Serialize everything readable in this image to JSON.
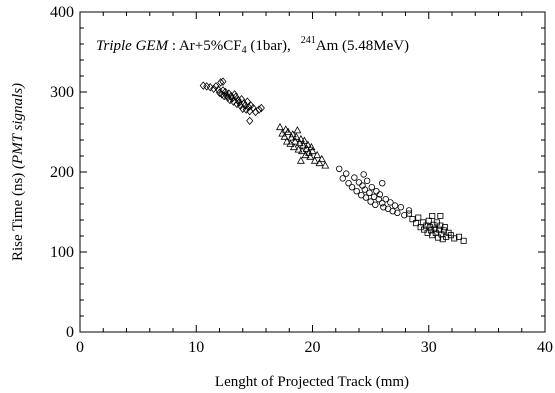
{
  "chart_data": {
    "type": "scatter",
    "title": "",
    "annotation": {
      "detector": "Triple GEM",
      "sep": " : ",
      "gas_pre": "Ar+5%CF",
      "gas_sub": "4",
      "gas_post": " (1bar),",
      "iso_mass": "241",
      "iso_rest": "Am (5.48MeV)"
    },
    "xlabel": "Lenght of Projected Track (mm)",
    "ylabel": {
      "main": "Rise Time (ns) ",
      "italic": "(PMT signals)"
    },
    "xlim": [
      0,
      40
    ],
    "ylim": [
      0,
      400
    ],
    "xticks": [
      "0",
      "10",
      "20",
      "30",
      "40"
    ],
    "yticks": [
      "0",
      "100",
      "200",
      "300",
      "400"
    ],
    "grid": false,
    "legend": "none",
    "series": [
      {
        "marker": "diamond",
        "points": [
          [
            10.6,
            308
          ],
          [
            10.9,
            307
          ],
          [
            11.2,
            306
          ],
          [
            11.5,
            304
          ],
          [
            11.7,
            307
          ],
          [
            11.9,
            303
          ],
          [
            12.0,
            299
          ],
          [
            12.1,
            312
          ],
          [
            12.2,
            297
          ],
          [
            12.3,
            302
          ],
          [
            12.4,
            295
          ],
          [
            12.5,
            300
          ],
          [
            12.6,
            296
          ],
          [
            12.7,
            293
          ],
          [
            12.8,
            298
          ],
          [
            12.9,
            290
          ],
          [
            13.0,
            295
          ],
          [
            13.1,
            292
          ],
          [
            13.2,
            288
          ],
          [
            13.3,
            297
          ],
          [
            13.4,
            294
          ],
          [
            13.5,
            285
          ],
          [
            13.6,
            290
          ],
          [
            13.7,
            287
          ],
          [
            13.8,
            283
          ],
          [
            13.9,
            291
          ],
          [
            14.0,
            279
          ],
          [
            14.1,
            286
          ],
          [
            14.2,
            283
          ],
          [
            14.3,
            278
          ],
          [
            14.4,
            288
          ],
          [
            14.5,
            281
          ],
          [
            14.6,
            276
          ],
          [
            14.7,
            283
          ],
          [
            14.9,
            280
          ],
          [
            15.1,
            275
          ],
          [
            15.4,
            278
          ],
          [
            15.6,
            280
          ],
          [
            14.6,
            264
          ],
          [
            12.3,
            313
          ]
        ]
      },
      {
        "marker": "triangle",
        "points": [
          [
            17.2,
            256
          ],
          [
            17.4,
            248
          ],
          [
            17.6,
            244
          ],
          [
            17.8,
            238
          ],
          [
            17.9,
            250
          ],
          [
            18.1,
            235
          ],
          [
            18.2,
            243
          ],
          [
            18.3,
            247
          ],
          [
            18.4,
            231
          ],
          [
            18.5,
            238
          ],
          [
            18.6,
            244
          ],
          [
            18.7,
            252
          ],
          [
            18.8,
            228
          ],
          [
            18.9,
            236
          ],
          [
            19.0,
            241
          ],
          [
            19.1,
            226
          ],
          [
            19.2,
            233
          ],
          [
            19.3,
            239
          ],
          [
            19.4,
            221
          ],
          [
            19.5,
            229
          ],
          [
            19.6,
            234
          ],
          [
            19.7,
            224
          ],
          [
            19.8,
            219
          ],
          [
            19.9,
            231
          ],
          [
            20.0,
            226
          ],
          [
            20.2,
            214
          ],
          [
            20.4,
            221
          ],
          [
            20.6,
            211
          ],
          [
            20.8,
            216
          ],
          [
            21.1,
            208
          ],
          [
            19.0,
            214
          ],
          [
            17.7,
            253
          ]
        ]
      },
      {
        "marker": "circle",
        "points": [
          [
            22.3,
            204
          ],
          [
            22.6,
            192
          ],
          [
            22.9,
            198
          ],
          [
            23.1,
            186
          ],
          [
            23.4,
            181
          ],
          [
            23.6,
            193
          ],
          [
            23.8,
            176
          ],
          [
            24.0,
            187
          ],
          [
            24.2,
            171
          ],
          [
            24.3,
            183
          ],
          [
            24.5,
            178
          ],
          [
            24.6,
            168
          ],
          [
            24.7,
            189
          ],
          [
            24.9,
            174
          ],
          [
            25.0,
            163
          ],
          [
            25.1,
            181
          ],
          [
            25.3,
            169
          ],
          [
            25.4,
            159
          ],
          [
            25.5,
            176
          ],
          [
            25.7,
            166
          ],
          [
            25.8,
            172
          ],
          [
            26.0,
            161
          ],
          [
            26.1,
            156
          ],
          [
            26.3,
            166
          ],
          [
            26.5,
            154
          ],
          [
            26.7,
            162
          ],
          [
            26.9,
            151
          ],
          [
            27.1,
            158
          ],
          [
            27.3,
            149
          ],
          [
            27.6,
            156
          ],
          [
            27.9,
            146
          ],
          [
            28.3,
            152
          ],
          [
            24.4,
            197
          ],
          [
            26.0,
            186
          ]
        ]
      },
      {
        "marker": "square",
        "points": [
          [
            28.3,
            148
          ],
          [
            28.6,
            141
          ],
          [
            28.9,
            136
          ],
          [
            29.1,
            143
          ],
          [
            29.3,
            131
          ],
          [
            29.5,
            137
          ],
          [
            29.6,
            128
          ],
          [
            29.8,
            133
          ],
          [
            29.9,
            124
          ],
          [
            30.0,
            139
          ],
          [
            30.1,
            131
          ],
          [
            30.2,
            127
          ],
          [
            30.3,
            121
          ],
          [
            30.4,
            134
          ],
          [
            30.5,
            129
          ],
          [
            30.6,
            124
          ],
          [
            30.7,
            137
          ],
          [
            30.8,
            118
          ],
          [
            30.9,
            128
          ],
          [
            31.0,
            133
          ],
          [
            31.1,
            122
          ],
          [
            31.2,
            116
          ],
          [
            31.3,
            127
          ],
          [
            31.4,
            131
          ],
          [
            31.5,
            119
          ],
          [
            31.7,
            124
          ],
          [
            31.9,
            121
          ],
          [
            32.2,
            117
          ],
          [
            32.6,
            119
          ],
          [
            33.0,
            114
          ],
          [
            30.3,
            145
          ],
          [
            31.0,
            145
          ]
        ]
      }
    ]
  }
}
